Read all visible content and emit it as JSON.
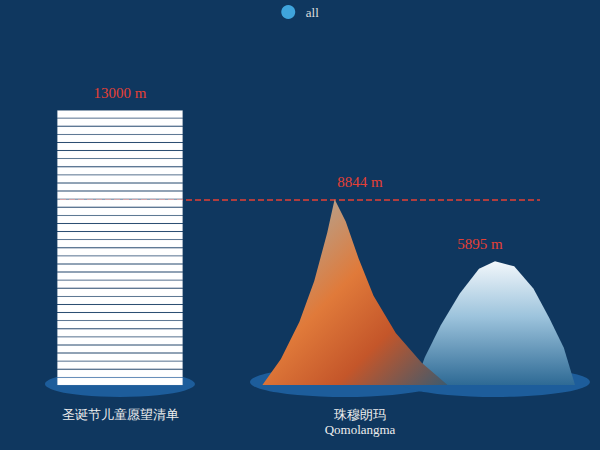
{
  "chart_data": {
    "type": "pictorialBar",
    "categories": [
      "圣诞节儿童愿望清单",
      null,
      "珠穆朗玛\nQomolangma",
      null
    ],
    "series": [
      {
        "name": "all",
        "color": "#3fa4dc",
        "values": [
          13000,
          null,
          8844,
          5895
        ],
        "value_labels": [
          "13000 m",
          null,
          "8844 m",
          "5895 m"
        ]
      }
    ],
    "reference_line": 8844,
    "ylim": [
      0,
      15000
    ],
    "grid": false,
    "legend": "top",
    "data_labels": true,
    "tick_labels": "x"
  }
}
